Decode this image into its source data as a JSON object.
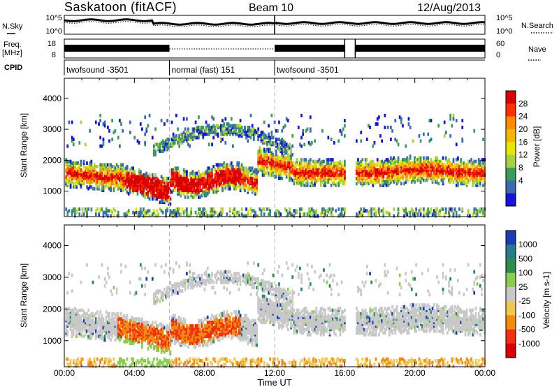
{
  "header": {
    "title": "Saskatoon (fitACF)",
    "beam": "Beam 10",
    "date": "12/Aug/2013"
  },
  "chart_data": [
    {
      "type": "line",
      "panel": "noise",
      "left_label": "N.Sky",
      "right_label": "N.Search",
      "left_ticks": [
        "10^5",
        "10^0"
      ],
      "right_ticks": [
        "10^5",
        "10^0"
      ],
      "legend_line_style": "solid (left), dotted (right)"
    },
    {
      "type": "line",
      "panel": "frequency",
      "left_label_lines": [
        "Freq.",
        "[MHz]"
      ],
      "right_label": "Nave",
      "left_ticks": [
        "18",
        "8"
      ],
      "right_ticks": [
        "60",
        "0"
      ]
    },
    {
      "type": "table",
      "panel": "cpid",
      "label": "CPID",
      "segments": [
        {
          "label": "twofsound -3501",
          "start_h": 0,
          "end_h": 6
        },
        {
          "label": "normal (fast) 151",
          "start_h": 6,
          "end_h": 12
        },
        {
          "label": "twofsound -3501",
          "start_h": 12,
          "end_h": 24
        }
      ]
    },
    {
      "type": "heatmap",
      "panel": "power",
      "ylabel": "Slant Range [km]",
      "yticks": [
        1000,
        2000,
        3000,
        4000
      ],
      "ylim": [
        180,
        4650
      ],
      "colorbar_label": "Power [dB]",
      "colorbar_ticks": [
        "28",
        "24",
        "20",
        "16",
        "12",
        "8",
        "4"
      ],
      "colorbar_colors": [
        "#d80000",
        "#ff3000",
        "#ff8c00",
        "#f0b800",
        "#e6e600",
        "#a8d040",
        "#3c9a5a",
        "#3a6ab0",
        "#1414dc"
      ],
      "data_gap_hours": [
        16.0,
        16.6
      ]
    },
    {
      "type": "heatmap",
      "panel": "velocity",
      "ylabel": "Slant Range [km]",
      "yticks": [
        1000,
        2000,
        3000,
        4000
      ],
      "ylim": [
        180,
        4650
      ],
      "colorbar_label": "Velocity [m s-1]",
      "colorbar_ticks": [
        "1000",
        "500",
        "100",
        "25",
        "-25",
        "-100",
        "-500",
        "-1000"
      ],
      "colorbar_colors": [
        "#1a3cb4",
        "#2a7a8c",
        "#2e8c4e",
        "#8ccc50",
        "#c8c8c8",
        "#f0c850",
        "#f08c10",
        "#f03010",
        "#d80000"
      ],
      "data_gap_hours": [
        16.0,
        16.6
      ]
    }
  ],
  "xaxis": {
    "label": "Time UT",
    "ticks": [
      "00:00",
      "04:00",
      "08:00",
      "12:00",
      "16:00",
      "20:00",
      "00:00"
    ],
    "range_hours": [
      0,
      24
    ]
  }
}
